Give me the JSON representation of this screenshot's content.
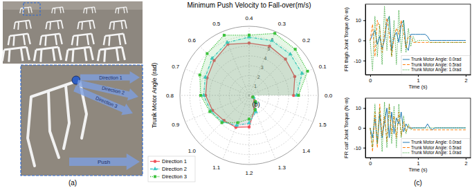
{
  "figure": {
    "panel_labels": [
      "(a)",
      "(b)",
      "(c)"
    ],
    "photo_annotations": [
      "Direction 1",
      "Direction 2",
      "Direction 3",
      "Push"
    ]
  },
  "chart_data": [
    {
      "type": "polar",
      "title": "Minimum Push Velocity to Fall-over(m/s)",
      "xlabel": "Trunk Motor Angle (rad)",
      "x": [
        0,
        0.1,
        0.2,
        0.3,
        0.4,
        0.5,
        0.6,
        0.7,
        0.8,
        0.9,
        1,
        1.1,
        1.2,
        1.3,
        1.4,
        1.5
      ],
      "xlim": [
        0,
        1.6
      ],
      "xticks": [
        {
          "value": 0,
          "label": "0.0"
        },
        0.1,
        0.2,
        0.3,
        0.4,
        0.5,
        0.6,
        0.7,
        0.8,
        0.9,
        {
          "value": 1,
          "label": "1.0"
        },
        1.1,
        1.2,
        1.3,
        1.4,
        1.5
      ],
      "ylim": [
        0,
        7
      ],
      "yticks": [
        1,
        2,
        3,
        4,
        5,
        6
      ],
      "grid": true,
      "legend": "lower left",
      "series": [
        {
          "name": "Direction 1",
          "color": "#f0505a",
          "line_style": "solid",
          "marker": "circle",
          "values": [
            4.5,
            5.0,
            5.2,
            5.4,
            5.3,
            5.6,
            5.0,
            4.6,
            4.4,
            4.0,
            3.6,
            3.5,
            3.2,
            1.5,
            0.8,
            0.4
          ]
        },
        {
          "name": "Direction 2",
          "color": "#3cc8c8",
          "line_style": "dashdot",
          "marker": "triangle",
          "values": [
            4.8,
            5.8,
            5.9,
            6.0,
            5.9,
            5.8,
            5.3,
            4.8,
            4.6,
            4.2,
            3.8,
            3.3,
            2.8,
            1.8,
            1.0,
            0.5
          ]
        },
        {
          "name": "Direction 3",
          "color": "#3dc23d",
          "line_style": "dotted",
          "marker": "square",
          "values": [
            5.0,
            6.4,
            6.6,
            6.8,
            6.1,
            6.6,
            6.0,
            5.4,
            4.9,
            4.3,
            3.9,
            3.0,
            2.4,
            1.6,
            0.9,
            0.4
          ]
        }
      ]
    },
    {
      "type": "line",
      "xlabel": "Time (s)",
      "ylabel": "FR thigh Joint Torque (N·m)",
      "x": [
        0,
        0.05,
        0.1,
        0.15,
        0.2,
        0.25,
        0.3,
        0.35,
        0.4,
        0.45,
        0.5,
        0.55,
        0.6,
        0.65,
        0.7,
        0.75,
        0.8,
        0.85,
        0.9,
        0.95,
        1,
        1.05,
        1.1,
        1.15,
        1.2,
        1.25,
        1.3,
        1.35,
        1.4,
        1.45,
        1.5,
        1.55,
        1.6,
        1.65,
        1.7,
        1.75,
        1.8,
        1.85,
        1.9,
        1.95,
        2
      ],
      "xlim": [
        -0.1,
        2.1
      ],
      "xticks": [
        0,
        1,
        2
      ],
      "ylim": [
        -17,
        18
      ],
      "yticks": [
        -10,
        0,
        10
      ],
      "legend": "lower right",
      "series": [
        {
          "name": "Trunk Motor Angle: 0.0rad",
          "color": "#1f77b4",
          "line_style": "solid",
          "values": [
            0,
            3,
            5,
            -2,
            2,
            -4,
            0,
            9,
            12,
            -5,
            2,
            4,
            -1,
            8,
            10,
            -3,
            -5,
            3,
            3,
            3,
            3,
            3,
            3,
            3,
            2,
            0,
            0,
            0,
            0,
            0,
            0,
            0,
            0,
            0,
            0,
            0,
            0,
            0,
            0,
            0,
            0
          ]
        },
        {
          "name": "Trunk Motor Angle: 0.5rad",
          "color": "#ff7f0e",
          "line_style": "dashed",
          "values": [
            0,
            8,
            -8,
            10,
            6,
            -6,
            3,
            11,
            3,
            -8,
            2,
            6,
            3,
            10,
            4,
            -4,
            2,
            2,
            -1,
            -1,
            -1,
            -1,
            -1,
            -1,
            -1,
            -1,
            -1,
            -1,
            -1,
            -1,
            -1,
            -1,
            -1,
            -1,
            -1,
            -1,
            -1,
            -1,
            -1,
            -1,
            -1
          ]
        },
        {
          "name": "Trunk Motor Angle: 1.0rad",
          "color": "#2ca02c",
          "line_style": "dotted",
          "values": [
            0,
            -15,
            12,
            -8,
            8,
            -12,
            17,
            -5,
            12,
            -8,
            10,
            -12,
            15,
            -6,
            10,
            -6,
            6,
            -3,
            2,
            -1,
            0,
            0,
            0,
            0,
            0,
            -1,
            -1,
            -1,
            -1,
            -1,
            -1,
            -1,
            -1,
            -1,
            -1,
            -1,
            -1,
            -1,
            -1,
            -1,
            -1
          ]
        }
      ]
    },
    {
      "type": "line",
      "xlabel": "Time (s)",
      "ylabel": "FR calf Joint Torque (N·m)",
      "x": [
        0,
        0.05,
        0.1,
        0.15,
        0.2,
        0.25,
        0.3,
        0.35,
        0.4,
        0.45,
        0.5,
        0.55,
        0.6,
        0.65,
        0.7,
        0.75,
        0.8,
        0.85,
        0.9,
        0.95,
        1,
        1.05,
        1.1,
        1.15,
        1.2,
        1.25,
        1.3,
        1.35,
        1.4,
        1.45,
        1.5,
        1.55,
        1.6,
        1.65,
        1.7,
        1.75,
        1.8,
        1.85,
        1.9,
        1.95,
        2
      ],
      "xlim": [
        -0.1,
        2.1
      ],
      "xticks": [
        0,
        1,
        2
      ],
      "ylim": [
        -15,
        15
      ],
      "yticks": [
        -10,
        0,
        10
      ],
      "legend": "lower right",
      "series": [
        {
          "name": "Trunk Motor Angle: 0.0rad",
          "color": "#1f77b4",
          "line_style": "solid",
          "values": [
            0,
            -5,
            5,
            -8,
            7,
            -5,
            3,
            10,
            -5,
            8,
            -3,
            5,
            2,
            8,
            -2,
            2,
            0,
            0,
            0,
            0,
            0,
            0,
            0,
            0,
            2,
            0,
            -1,
            0,
            0,
            0,
            0,
            0,
            0,
            0,
            0,
            0,
            0,
            0,
            0,
            0,
            0
          ]
        },
        {
          "name": "Trunk Motor Angle: 0.5rad",
          "color": "#ff7f0e",
          "line_style": "dashed",
          "values": [
            0,
            -12,
            8,
            -10,
            12,
            -4,
            6,
            -7,
            12,
            -3,
            6,
            -5,
            8,
            -4,
            3,
            -2,
            1,
            0,
            -1,
            -1,
            -1,
            -1,
            -1,
            -1,
            -1,
            -1,
            -1,
            -1,
            -1,
            -1,
            -1,
            -1,
            -1,
            -1,
            -1,
            -1,
            -1,
            -1,
            -1,
            -1,
            -1
          ]
        },
        {
          "name": "Trunk Motor Angle: 1.0rad",
          "color": "#2ca02c",
          "line_style": "dotted",
          "values": [
            0,
            -10,
            12,
            -8,
            10,
            -12,
            13,
            -10,
            12,
            -8,
            11,
            -10,
            12,
            -5,
            6,
            -3,
            2,
            -1,
            0,
            0,
            0,
            0,
            0,
            0,
            0,
            0,
            0,
            0,
            0,
            0,
            0,
            0,
            0,
            0,
            0,
            0,
            0,
            0,
            0,
            0,
            0
          ]
        }
      ]
    }
  ]
}
